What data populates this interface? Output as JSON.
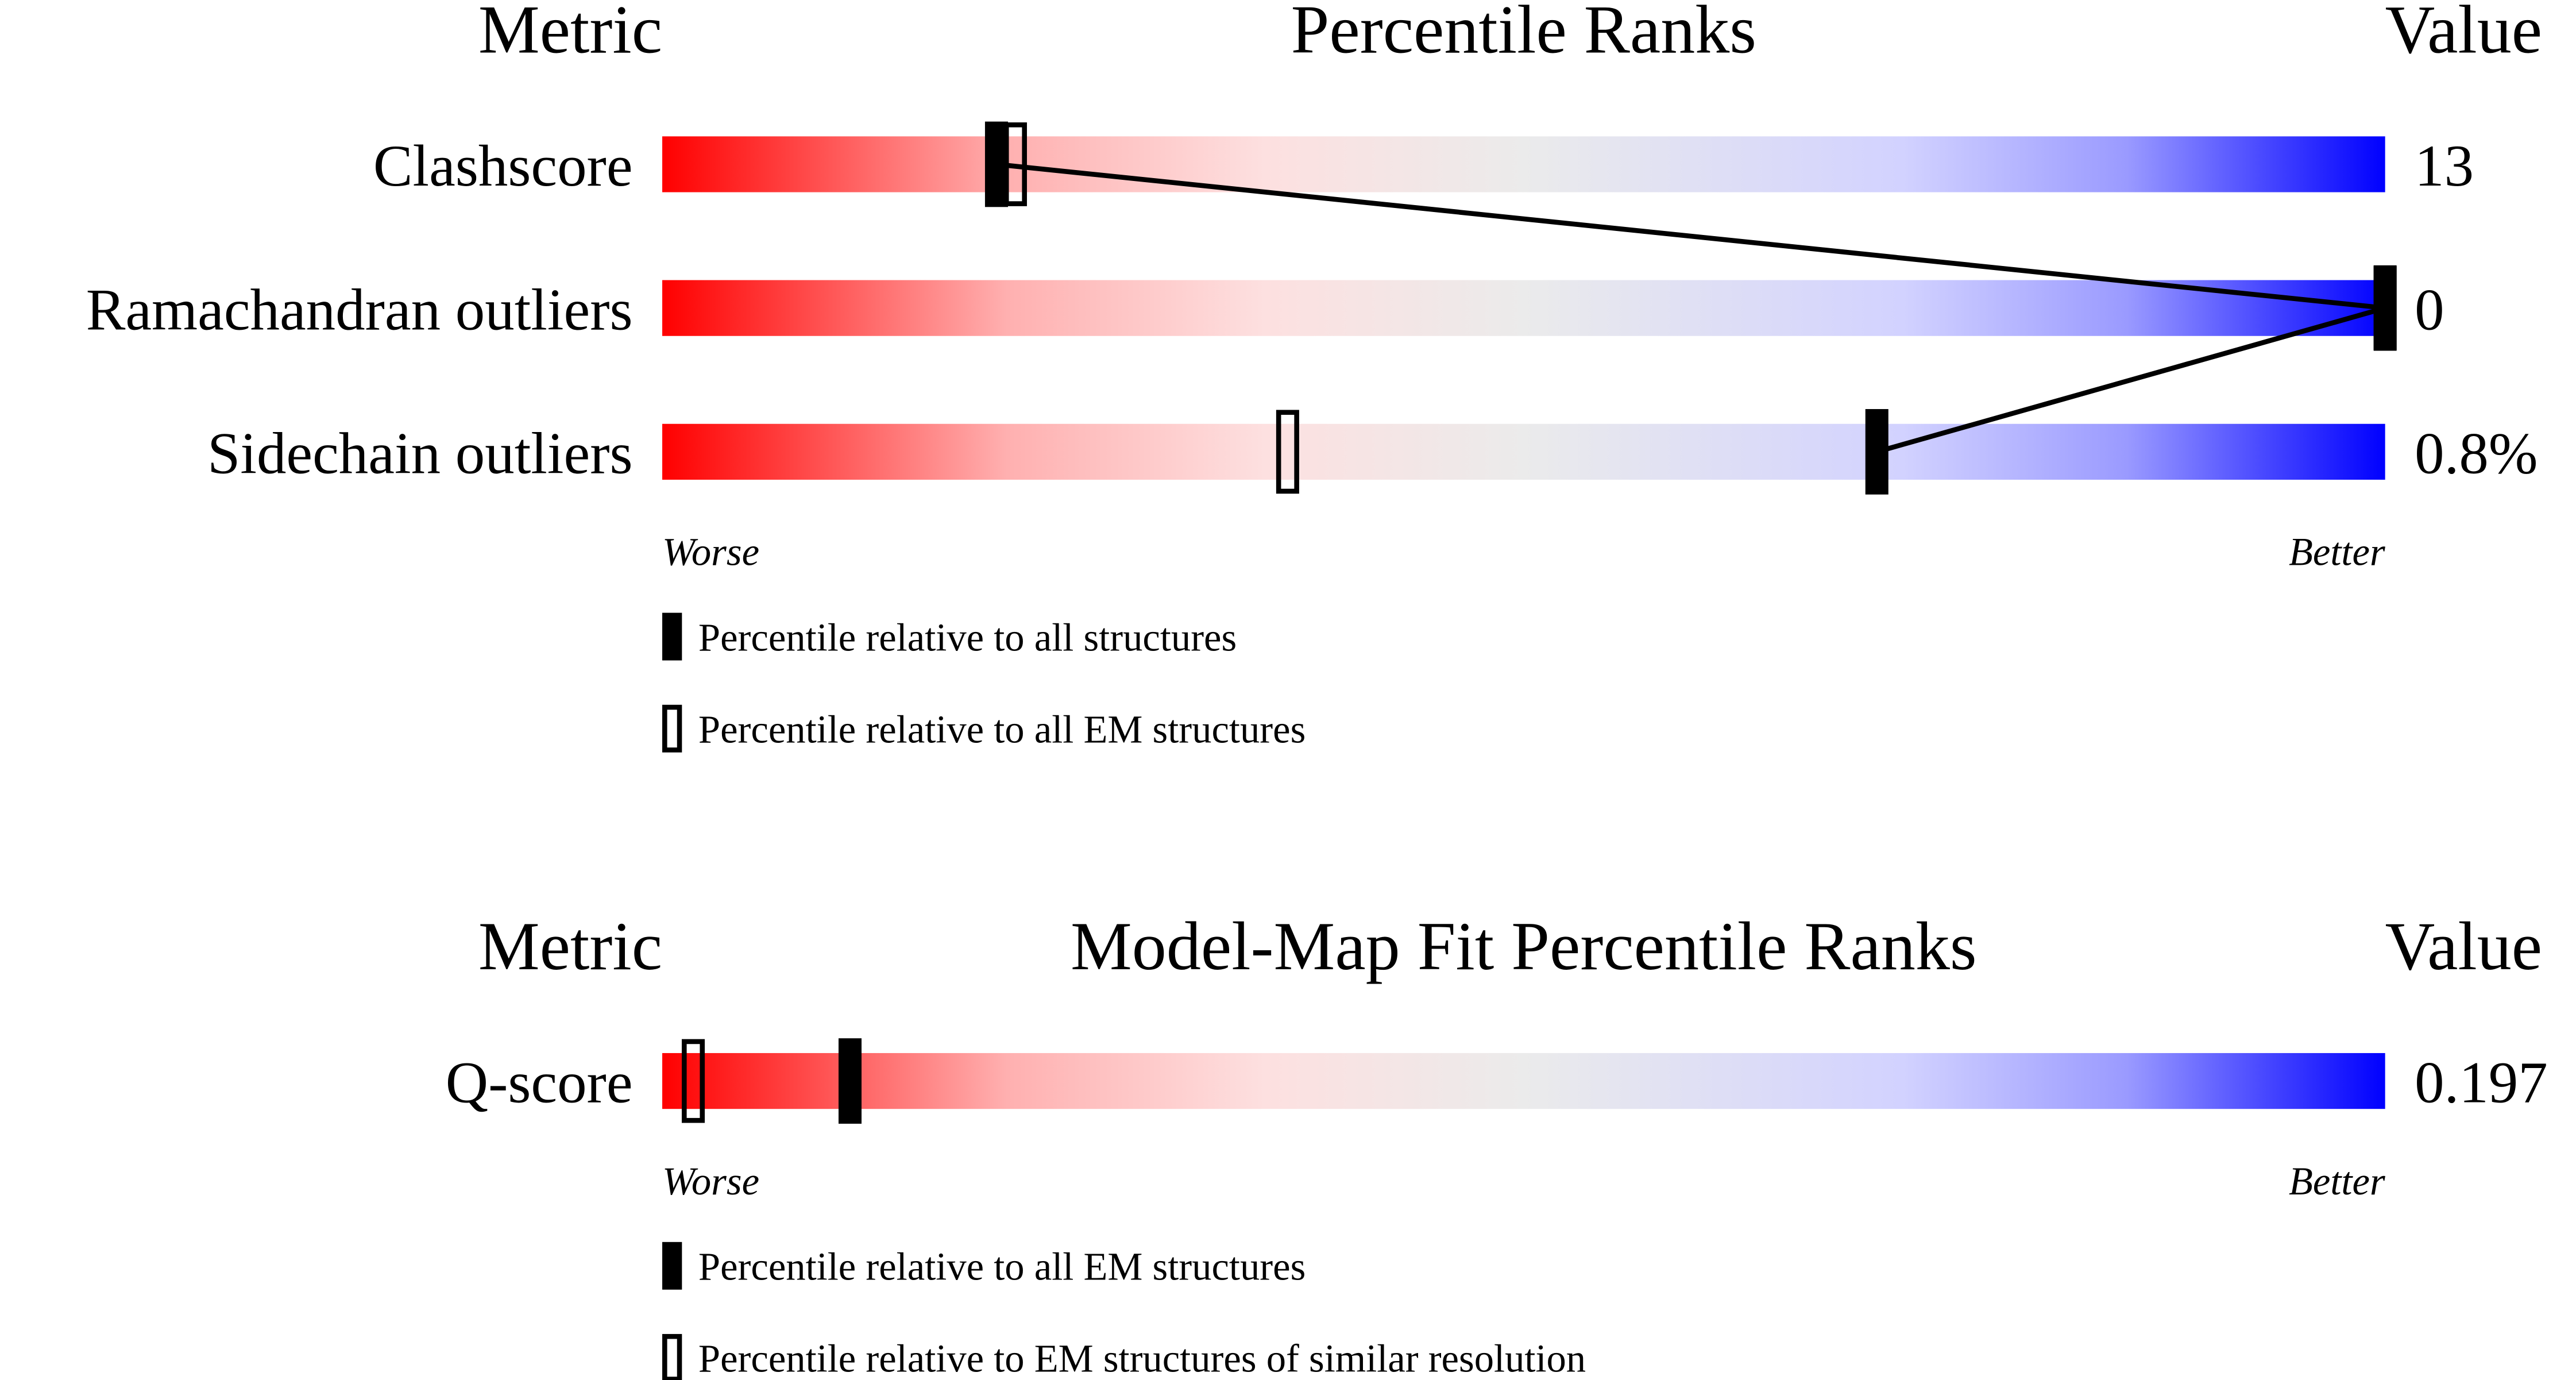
{
  "chart_data": [
    {
      "type": "percentile-slider",
      "metric_header": "Metric",
      "title": "Percentile Ranks",
      "value_header": "Value",
      "categories": [
        "Clashscore",
        "Ramachandran outliers",
        "Sidechain outliers"
      ],
      "value_texts": [
        "13",
        "0",
        "0.8%"
      ],
      "series": [
        {
          "name": "Percentile relative to all structures",
          "style": "filled",
          "values": [
            19.4,
            100,
            70.5
          ]
        },
        {
          "name": "Percentile relative to all EM structures",
          "style": "outline",
          "values": [
            20.5,
            100,
            36.3
          ]
        }
      ],
      "xlim": [
        0,
        100
      ],
      "worse_label": "Worse",
      "better_label": "Better",
      "connect": true
    },
    {
      "type": "percentile-slider",
      "metric_header": "Metric",
      "title": "Model-Map Fit Percentile Ranks",
      "value_header": "Value",
      "categories": [
        "Q-score"
      ],
      "value_texts": [
        "0.197"
      ],
      "series": [
        {
          "name": "Percentile relative to all EM structures",
          "style": "filled",
          "values": [
            10.9
          ]
        },
        {
          "name": "Percentile relative to EM structures of similar resolution",
          "style": "outline",
          "values": [
            1.8
          ]
        }
      ],
      "xlim": [
        0,
        100
      ],
      "worse_label": "Worse",
      "better_label": "Better",
      "connect": true
    }
  ]
}
